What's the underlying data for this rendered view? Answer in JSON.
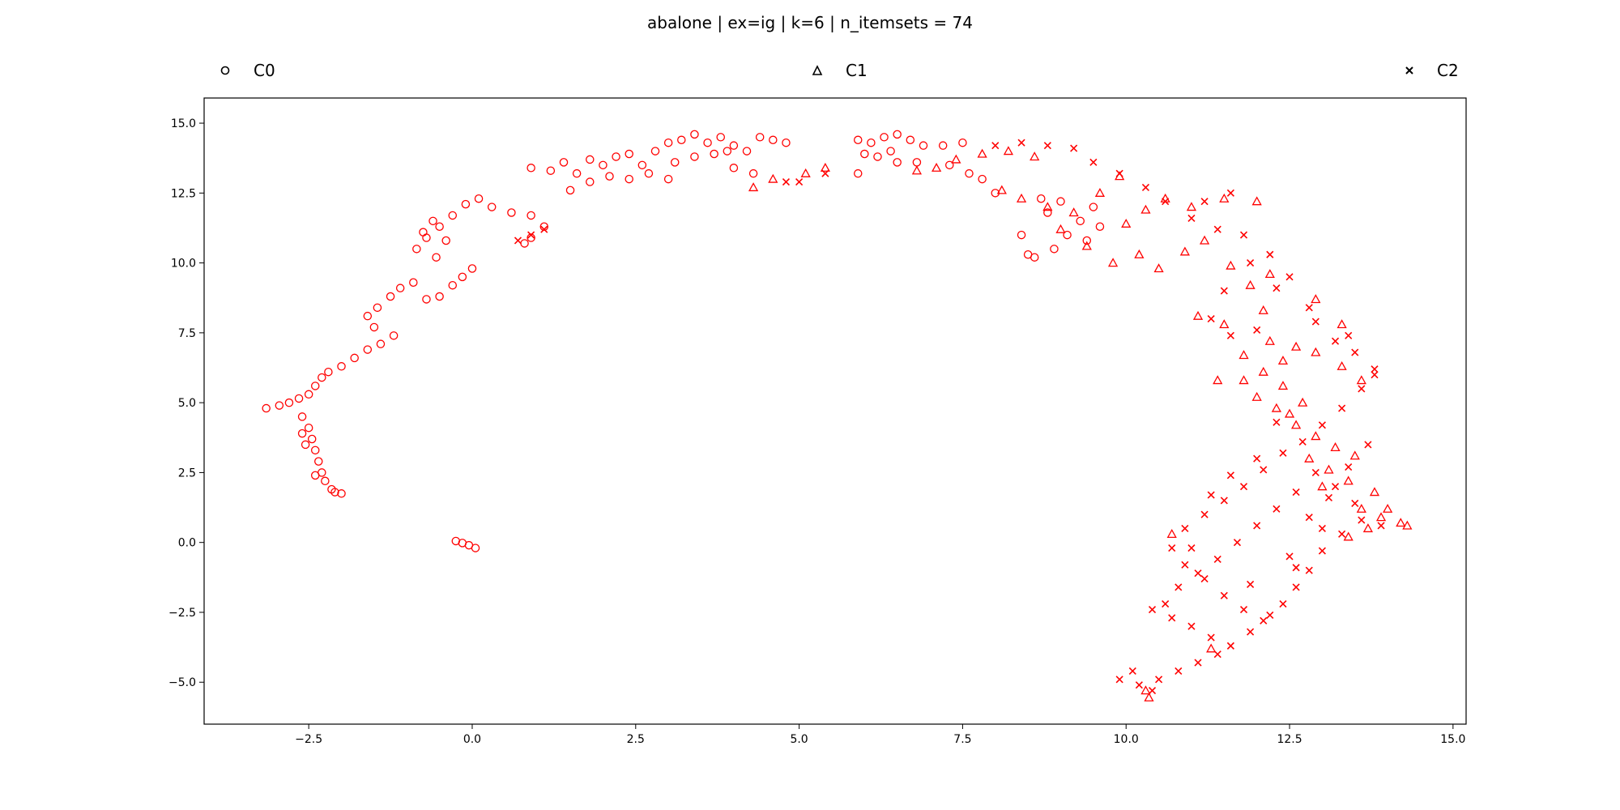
{
  "chart_data": {
    "type": "scatter",
    "title": "abalone | ex=ig |  k=6 | n_itemsets = 74",
    "xlabel": "",
    "ylabel": "",
    "xlim": [
      -4.1,
      15.2
    ],
    "ylim": [
      -6.5,
      15.9
    ],
    "xticks": [
      -2.5,
      0.0,
      2.5,
      5.0,
      7.5,
      10.0,
      12.5,
      15.0
    ],
    "xtick_labels": [
      "−2.5",
      "0.0",
      "2.5",
      "5.0",
      "7.5",
      "10.0",
      "12.5",
      "15.0"
    ],
    "yticks": [
      -5.0,
      -2.5,
      0.0,
      2.5,
      5.0,
      7.5,
      10.0,
      12.5,
      15.0
    ],
    "ytick_labels": [
      "−5.0",
      "−2.5",
      "0.0",
      "2.5",
      "5.0",
      "7.5",
      "10.0",
      "12.5",
      "15.0"
    ],
    "grid": false,
    "legend_position": "top",
    "series": [
      {
        "name": "C0",
        "marker": "circle",
        "color": "#ff0000",
        "points": [
          [
            -3.15,
            4.8
          ],
          [
            -2.95,
            4.9
          ],
          [
            -2.8,
            5.0
          ],
          [
            -2.65,
            5.15
          ],
          [
            -2.5,
            5.3
          ],
          [
            -2.4,
            5.6
          ],
          [
            -2.3,
            5.9
          ],
          [
            -2.2,
            6.1
          ],
          [
            -2.0,
            6.3
          ],
          [
            -1.8,
            6.6
          ],
          [
            -1.6,
            6.9
          ],
          [
            -1.4,
            7.1
          ],
          [
            -1.2,
            7.4
          ],
          [
            -1.5,
            7.7
          ],
          [
            -1.6,
            8.1
          ],
          [
            -1.45,
            8.4
          ],
          [
            -1.25,
            8.8
          ],
          [
            -1.1,
            9.1
          ],
          [
            -0.9,
            9.3
          ],
          [
            -0.7,
            8.7
          ],
          [
            -0.5,
            8.8
          ],
          [
            -0.3,
            9.2
          ],
          [
            -0.15,
            9.5
          ],
          [
            0.0,
            9.8
          ],
          [
            -0.85,
            10.5
          ],
          [
            -0.7,
            10.9
          ],
          [
            -0.5,
            11.3
          ],
          [
            -0.3,
            11.7
          ],
          [
            -0.75,
            11.1
          ],
          [
            -0.6,
            11.5
          ],
          [
            -0.4,
            10.8
          ],
          [
            -0.55,
            10.2
          ],
          [
            -0.1,
            12.1
          ],
          [
            0.1,
            12.3
          ],
          [
            0.3,
            12.0
          ],
          [
            0.6,
            11.8
          ],
          [
            0.9,
            11.7
          ],
          [
            0.9,
            10.9
          ],
          [
            1.1,
            11.3
          ],
          [
            0.8,
            10.7
          ],
          [
            0.9,
            13.4
          ],
          [
            1.2,
            13.3
          ],
          [
            1.4,
            13.6
          ],
          [
            1.6,
            13.2
          ],
          [
            1.8,
            13.7
          ],
          [
            2.0,
            13.5
          ],
          [
            2.2,
            13.8
          ],
          [
            2.4,
            13.9
          ],
          [
            1.5,
            12.6
          ],
          [
            1.8,
            12.9
          ],
          [
            2.1,
            13.1
          ],
          [
            2.4,
            13.0
          ],
          [
            2.6,
            13.5
          ],
          [
            2.8,
            14.0
          ],
          [
            3.0,
            14.3
          ],
          [
            3.2,
            14.4
          ],
          [
            3.4,
            14.6
          ],
          [
            3.6,
            14.3
          ],
          [
            3.8,
            14.5
          ],
          [
            4.0,
            14.2
          ],
          [
            4.2,
            14.0
          ],
          [
            4.4,
            14.5
          ],
          [
            4.6,
            14.4
          ],
          [
            4.8,
            14.3
          ],
          [
            3.1,
            13.6
          ],
          [
            3.4,
            13.8
          ],
          [
            3.7,
            13.9
          ],
          [
            4.0,
            13.4
          ],
          [
            4.3,
            13.2
          ],
          [
            2.7,
            13.2
          ],
          [
            3.0,
            13.0
          ],
          [
            3.9,
            14.0
          ],
          [
            5.9,
            14.4
          ],
          [
            6.1,
            14.3
          ],
          [
            6.3,
            14.5
          ],
          [
            6.5,
            14.6
          ],
          [
            6.7,
            14.4
          ],
          [
            6.9,
            14.2
          ],
          [
            6.2,
            13.8
          ],
          [
            6.5,
            13.6
          ],
          [
            6.0,
            13.9
          ],
          [
            6.8,
            13.6
          ],
          [
            7.2,
            14.2
          ],
          [
            7.5,
            14.3
          ],
          [
            5.9,
            13.2
          ],
          [
            6.4,
            14.0
          ],
          [
            -2.6,
            4.5
          ],
          [
            -2.5,
            4.1
          ],
          [
            -2.45,
            3.7
          ],
          [
            -2.4,
            3.3
          ],
          [
            -2.35,
            2.9
          ],
          [
            -2.3,
            2.5
          ],
          [
            -2.25,
            2.2
          ],
          [
            -2.15,
            1.9
          ],
          [
            -2.0,
            1.75
          ],
          [
            -2.6,
            3.9
          ],
          [
            -2.55,
            3.5
          ],
          [
            -2.4,
            2.4
          ],
          [
            -2.1,
            1.8
          ],
          [
            -0.25,
            0.05
          ],
          [
            -0.15,
            -0.02
          ],
          [
            -0.05,
            -0.1
          ],
          [
            0.05,
            -0.2
          ],
          [
            8.6,
            10.2
          ],
          [
            8.9,
            10.5
          ],
          [
            9.1,
            11.0
          ],
          [
            9.3,
            11.5
          ],
          [
            9.5,
            12.0
          ],
          [
            8.4,
            11.0
          ],
          [
            8.0,
            12.5
          ],
          [
            7.6,
            13.2
          ],
          [
            8.8,
            11.8
          ],
          [
            9.0,
            12.2
          ],
          [
            8.7,
            12.3
          ],
          [
            8.5,
            10.3
          ],
          [
            9.4,
            10.8
          ],
          [
            9.6,
            11.3
          ],
          [
            7.3,
            13.5
          ],
          [
            7.8,
            13.0
          ]
        ]
      },
      {
        "name": "C1",
        "marker": "triangle",
        "color": "#ff0000",
        "points": [
          [
            4.3,
            12.7
          ],
          [
            4.6,
            13.0
          ],
          [
            5.1,
            13.2
          ],
          [
            5.4,
            13.4
          ],
          [
            6.8,
            13.3
          ],
          [
            7.1,
            13.4
          ],
          [
            7.4,
            13.7
          ],
          [
            7.8,
            13.9
          ],
          [
            8.1,
            12.6
          ],
          [
            8.4,
            12.3
          ],
          [
            8.8,
            12.0
          ],
          [
            9.2,
            11.8
          ],
          [
            9.6,
            12.5
          ],
          [
            10.0,
            11.4
          ],
          [
            10.3,
            11.9
          ],
          [
            10.6,
            12.3
          ],
          [
            9.0,
            11.2
          ],
          [
            9.4,
            10.6
          ],
          [
            9.8,
            10.0
          ],
          [
            10.2,
            10.3
          ],
          [
            10.5,
            9.8
          ],
          [
            10.9,
            10.4
          ],
          [
            11.2,
            10.8
          ],
          [
            11.6,
            9.9
          ],
          [
            11.9,
            9.2
          ],
          [
            12.2,
            9.6
          ],
          [
            11.1,
            8.1
          ],
          [
            11.5,
            7.8
          ],
          [
            11.8,
            6.7
          ],
          [
            12.1,
            6.1
          ],
          [
            12.4,
            5.6
          ],
          [
            12.7,
            5.0
          ],
          [
            12.0,
            5.2
          ],
          [
            12.3,
            4.8
          ],
          [
            12.6,
            4.2
          ],
          [
            12.9,
            3.8
          ],
          [
            13.2,
            3.4
          ],
          [
            13.5,
            3.1
          ],
          [
            12.8,
            3.0
          ],
          [
            13.1,
            2.6
          ],
          [
            13.4,
            2.2
          ],
          [
            13.8,
            1.8
          ],
          [
            14.0,
            1.2
          ],
          [
            14.2,
            0.7
          ],
          [
            13.7,
            0.5
          ],
          [
            13.4,
            0.2
          ],
          [
            13.9,
            0.9
          ],
          [
            14.3,
            0.6
          ],
          [
            12.9,
            6.8
          ],
          [
            13.3,
            6.3
          ],
          [
            13.6,
            5.8
          ],
          [
            12.6,
            7.0
          ],
          [
            12.4,
            6.5
          ],
          [
            12.1,
            8.3
          ],
          [
            12.9,
            8.7
          ],
          [
            13.3,
            7.8
          ],
          [
            10.7,
            0.3
          ],
          [
            11.3,
            -3.8
          ],
          [
            10.3,
            -5.3
          ],
          [
            10.35,
            -5.55
          ],
          [
            11.8,
            5.8
          ],
          [
            12.5,
            4.6
          ],
          [
            13.0,
            2.0
          ],
          [
            13.6,
            1.2
          ],
          [
            11.4,
            5.8
          ],
          [
            12.2,
            7.2
          ],
          [
            12.0,
            12.2
          ],
          [
            11.5,
            12.3
          ],
          [
            11.0,
            12.0
          ],
          [
            9.9,
            13.1
          ],
          [
            8.6,
            13.8
          ],
          [
            8.2,
            14.0
          ]
        ]
      },
      {
        "name": "C2",
        "marker": "x",
        "color": "#ff0000",
        "points": [
          [
            0.7,
            10.8
          ],
          [
            0.9,
            11.0
          ],
          [
            1.1,
            11.2
          ],
          [
            4.8,
            12.9
          ],
          [
            5.0,
            12.9
          ],
          [
            5.4,
            13.2
          ],
          [
            8.0,
            14.2
          ],
          [
            8.4,
            14.3
          ],
          [
            8.8,
            14.2
          ],
          [
            9.2,
            14.1
          ],
          [
            9.5,
            13.6
          ],
          [
            9.9,
            13.2
          ],
          [
            10.3,
            12.7
          ],
          [
            10.6,
            12.2
          ],
          [
            11.0,
            11.6
          ],
          [
            11.4,
            11.2
          ],
          [
            11.8,
            11.0
          ],
          [
            12.2,
            10.3
          ],
          [
            12.5,
            9.5
          ],
          [
            11.5,
            9.0
          ],
          [
            11.3,
            8.0
          ],
          [
            11.6,
            7.4
          ],
          [
            12.0,
            7.6
          ],
          [
            12.9,
            7.9
          ],
          [
            13.2,
            7.2
          ],
          [
            13.5,
            6.8
          ],
          [
            13.8,
            6.2
          ],
          [
            13.6,
            5.5
          ],
          [
            13.3,
            4.8
          ],
          [
            13.0,
            4.2
          ],
          [
            12.7,
            3.6
          ],
          [
            12.4,
            3.2
          ],
          [
            12.1,
            2.6
          ],
          [
            11.8,
            2.0
          ],
          [
            11.5,
            1.5
          ],
          [
            11.2,
            1.0
          ],
          [
            10.9,
            0.5
          ],
          [
            10.7,
            -0.2
          ],
          [
            10.9,
            -0.8
          ],
          [
            11.2,
            -1.3
          ],
          [
            11.5,
            -1.9
          ],
          [
            11.8,
            -2.4
          ],
          [
            12.1,
            -2.8
          ],
          [
            12.4,
            -2.2
          ],
          [
            12.6,
            -1.6
          ],
          [
            12.8,
            -1.0
          ],
          [
            13.0,
            -0.3
          ],
          [
            13.3,
            0.3
          ],
          [
            13.6,
            0.8
          ],
          [
            13.9,
            0.6
          ],
          [
            13.5,
            1.4
          ],
          [
            13.2,
            2.0
          ],
          [
            12.9,
            2.5
          ],
          [
            12.6,
            1.8
          ],
          [
            12.3,
            1.2
          ],
          [
            12.0,
            0.6
          ],
          [
            11.7,
            0.0
          ],
          [
            11.4,
            -0.6
          ],
          [
            11.1,
            -1.1
          ],
          [
            10.8,
            -1.6
          ],
          [
            10.6,
            -2.2
          ],
          [
            10.4,
            -2.4
          ],
          [
            10.7,
            -2.7
          ],
          [
            11.0,
            -3.0
          ],
          [
            11.3,
            -3.4
          ],
          [
            11.6,
            -3.7
          ],
          [
            11.9,
            -3.2
          ],
          [
            11.4,
            -4.0
          ],
          [
            11.1,
            -4.3
          ],
          [
            10.8,
            -4.6
          ],
          [
            10.5,
            -4.9
          ],
          [
            10.2,
            -5.1
          ],
          [
            9.9,
            -4.9
          ],
          [
            10.1,
            -4.6
          ],
          [
            10.4,
            -5.3
          ],
          [
            12.2,
            -2.6
          ],
          [
            12.5,
            -0.5
          ],
          [
            12.8,
            0.9
          ],
          [
            13.1,
            1.6
          ],
          [
            13.4,
            2.7
          ],
          [
            13.7,
            3.5
          ],
          [
            12.3,
            4.3
          ],
          [
            12.0,
            3.0
          ],
          [
            11.6,
            2.4
          ],
          [
            11.3,
            1.7
          ],
          [
            11.0,
            -0.2
          ],
          [
            11.9,
            -1.5
          ],
          [
            12.6,
            -0.9
          ],
          [
            13.0,
            0.5
          ],
          [
            13.8,
            6.0
          ],
          [
            13.4,
            7.4
          ],
          [
            12.8,
            8.4
          ],
          [
            12.3,
            9.1
          ],
          [
            11.9,
            10.0
          ],
          [
            11.2,
            12.2
          ],
          [
            11.6,
            12.5
          ]
        ]
      }
    ]
  },
  "legend": {
    "items": [
      {
        "label": "C0",
        "marker": "circle"
      },
      {
        "label": "C1",
        "marker": "triangle"
      },
      {
        "label": "C2",
        "marker": "x"
      }
    ]
  }
}
